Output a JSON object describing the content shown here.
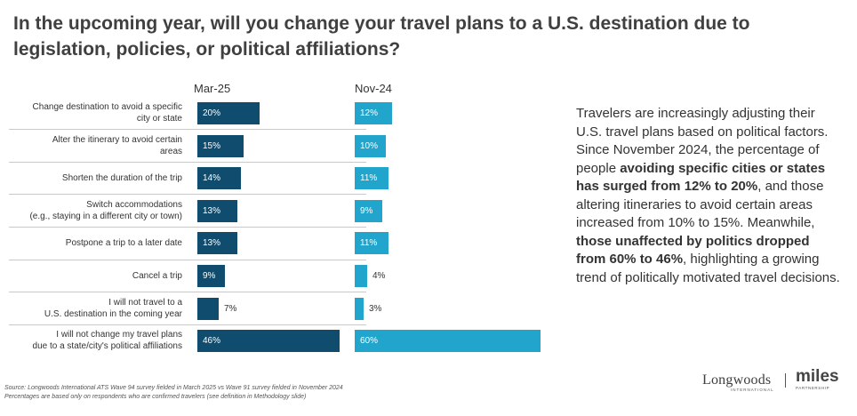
{
  "title": "In the upcoming year, will you change your travel plans to a U.S. destination due to legislation, policies, or political affiliations?",
  "chart_data": {
    "type": "bar",
    "orientation": "horizontal",
    "categories": [
      "Change destination to avoid a specific\ncity or state",
      "Alter the itinerary to avoid certain\nareas",
      "Shorten the duration of the trip",
      "Switch accommodations\n(e.g., staying in a different city or town)",
      "Postpone a trip to a later date",
      "Cancel a trip",
      "I will not travel to a\nU.S.  destination in the coming year",
      "I will not change my travel plans\ndue to a state/city's political affiliations"
    ],
    "series": [
      {
        "name": "Mar-25",
        "color": "#0f4c6e",
        "values": [
          20,
          15,
          14,
          13,
          13,
          9,
          7,
          46
        ],
        "labels": [
          "20%",
          "15%",
          "14%",
          "13%",
          "13%",
          "9%",
          "7%",
          "46%"
        ]
      },
      {
        "name": "Nov-24",
        "color": "#22a5cc",
        "values": [
          12,
          10,
          11,
          9,
          11,
          4,
          3,
          60
        ],
        "labels": [
          "12%",
          "10%",
          "11%",
          "9%",
          "11%",
          "4%",
          "3%",
          "60%"
        ]
      }
    ],
    "xlim": [
      0,
      60
    ],
    "grid": false,
    "legend": "none"
  },
  "summary": {
    "part1": "Travelers are increasingly adjusting their U.S. travel plans based on political factors. Since November 2024, the percentage of people ",
    "bold1": "avoiding specific cities or states has surged from 12% to 20%",
    "part2": ", and those altering itineraries to avoid certain areas increased from 10% to 15%. Meanwhile, ",
    "bold2": "those unaffected by politics dropped from 60% to 46%",
    "part3": ", highlighting a growing trend of politically motivated travel decisions."
  },
  "source": {
    "line1": "Source: Longwoods International ATS Wave 94 survey fielded in March 2025 vs Wave 91 survey fielded in November 2024",
    "line2": "Percentages are based only on respondents who are confirmed travelers (see definition in Methodology slide)"
  },
  "logos": {
    "longwoods": "Longwoods",
    "longwoods_sub": "INTERNATIONAL",
    "separator": "|",
    "miles": "miles",
    "miles_sub": "PARTNERSHIP"
  }
}
